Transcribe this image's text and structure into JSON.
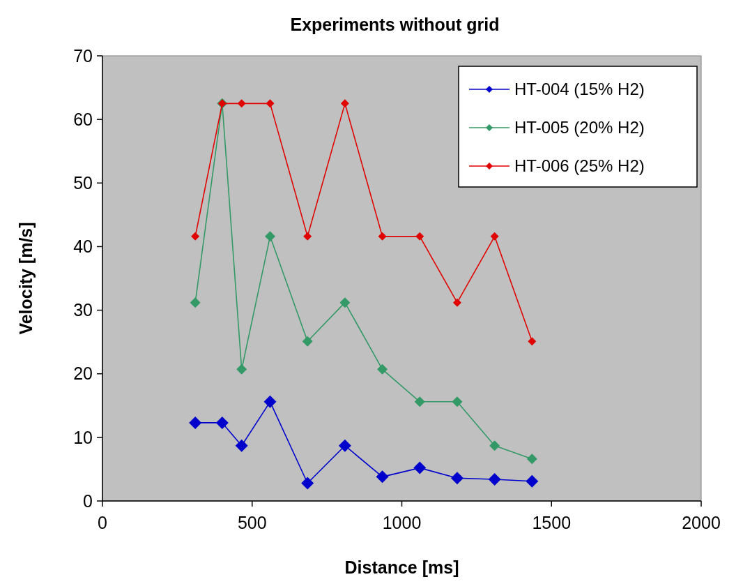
{
  "chart_data": {
    "type": "line",
    "title": "Experiments without grid",
    "xlabel": "Distance [ms]",
    "ylabel": "Velocity [m/s]",
    "x": [
      310,
      400,
      465,
      560,
      685,
      810,
      935,
      1060,
      1185,
      1310,
      1435
    ],
    "series": [
      {
        "name": "HT-004 (15% H2)",
        "color": "#0000cc",
        "values": [
          12.3,
          12.3,
          8.7,
          15.6,
          2.8,
          8.7,
          3.8,
          5.2,
          3.6,
          3.4,
          3.1
        ]
      },
      {
        "name": "HT-005 (20% H2)",
        "color": "#339966",
        "values": [
          31.2,
          62.5,
          20.7,
          41.6,
          25.1,
          31.2,
          20.7,
          15.6,
          15.6,
          8.7,
          6.6
        ]
      },
      {
        "name": "HT-006 (25% H2)",
        "color": "#e00000",
        "values": [
          41.6,
          62.5,
          62.5,
          62.5,
          41.6,
          62.5,
          41.6,
          41.6,
          31.2,
          41.6,
          25.1
        ]
      }
    ],
    "xlim": [
      0,
      2000
    ],
    "xticks": [
      0,
      500,
      1000,
      1500,
      2000
    ],
    "ylim": [
      0,
      70
    ],
    "yticks": [
      0,
      10,
      20,
      30,
      40,
      50,
      60,
      70
    ],
    "legend": "top right",
    "marker": "diamond",
    "line_style": "solid"
  }
}
